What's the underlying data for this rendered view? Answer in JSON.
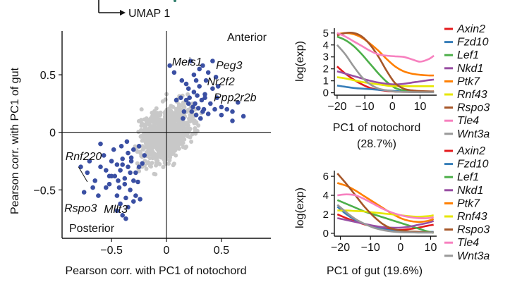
{
  "umap_label": "UMAP 1",
  "chart_data": [
    {
      "type": "scatter",
      "xlabel": "Pearson corr. with PC1 of notochord",
      "ylabel": "Pearson corr. with PC1 of gut",
      "xlim": [
        -0.95,
        0.95
      ],
      "ylim": [
        -0.92,
        0.88
      ],
      "xticks": [
        -0.5,
        0,
        0.5
      ],
      "xtick_labels": [
        "−0.5",
        "0",
        "0.5"
      ],
      "yticks": [
        0.5,
        0,
        -0.5
      ],
      "ytick_labels": [
        "0.5",
        "0",
        "−0.5"
      ],
      "region_labels": {
        "anterior": "Anterior",
        "posterior": "Posterior"
      },
      "colors": {
        "highlight": "#3a4fa3",
        "background": "#c8c8c8",
        "axis": "#111111"
      },
      "highlight_series": {
        "name": "highlighted genes",
        "x": [
          0.03,
          0.07,
          0.09,
          0.13,
          0.14,
          0.16,
          0.18,
          0.2,
          0.21,
          0.23,
          0.24,
          0.25,
          0.26,
          0.27,
          0.28,
          0.29,
          0.3,
          0.31,
          0.32,
          0.33,
          0.34,
          0.35,
          0.36,
          0.38,
          0.4,
          0.42,
          0.44,
          0.46,
          0.5,
          0.55,
          0.6,
          0.7,
          0.25,
          0.3,
          0.22,
          0.2,
          0.45,
          0.5,
          0.27,
          0.35,
          0.18,
          0.6,
          0.65,
          0.15,
          0.42,
          0.33,
          0.38,
          0.47,
          -0.2,
          -0.22,
          -0.25,
          -0.28,
          -0.3,
          -0.32,
          -0.33,
          -0.35,
          -0.37,
          -0.38,
          -0.4,
          -0.42,
          -0.43,
          -0.45,
          -0.47,
          -0.5,
          -0.52,
          -0.55,
          -0.57,
          -0.6,
          -0.62,
          -0.65,
          -0.7,
          -0.72,
          -0.75,
          -0.78,
          -0.3,
          -0.35,
          -0.4,
          -0.45,
          -0.5,
          -0.55,
          -0.25,
          -0.3,
          -0.35,
          -0.38,
          -0.42,
          -0.28,
          -0.33,
          -0.4,
          -0.45,
          -0.48,
          -0.52,
          -0.32,
          -0.37,
          -0.26,
          -0.36,
          -0.41,
          -0.44,
          -0.6,
          -0.67,
          -0.24
        ],
        "y": [
          0.58,
          0.52,
          0.28,
          0.3,
          0.45,
          0.18,
          0.28,
          0.25,
          0.3,
          0.18,
          0.22,
          0.35,
          0.25,
          0.15,
          0.32,
          0.21,
          0.4,
          0.12,
          0.28,
          0.18,
          0.2,
          0.3,
          0.45,
          0.16,
          0.25,
          0.38,
          0.2,
          0.3,
          0.15,
          0.2,
          0.18,
          0.14,
          0.5,
          0.55,
          0.62,
          0.38,
          0.48,
          0.22,
          0.45,
          0.33,
          0.42,
          0.1,
          0.26,
          0.12,
          0.62,
          0.58,
          0.52,
          0.4,
          -0.2,
          -0.27,
          -0.3,
          -0.35,
          -0.42,
          -0.22,
          -0.5,
          -0.3,
          -0.57,
          -0.4,
          -0.23,
          -0.33,
          -0.48,
          -0.28,
          -0.38,
          -0.25,
          -0.45,
          -0.33,
          -0.2,
          -0.3,
          -0.55,
          -0.42,
          -0.25,
          -0.35,
          -0.52,
          -0.3,
          -0.6,
          -0.65,
          -0.72,
          -0.68,
          -0.38,
          -0.48,
          -0.12,
          -0.15,
          -0.18,
          -0.45,
          -0.62,
          -0.55,
          -0.35,
          -0.28,
          -0.55,
          -0.15,
          -0.38,
          -0.25,
          -0.75,
          -0.43,
          -0.08,
          -0.12,
          -0.42,
          -0.1,
          -0.48,
          -0.58
        ]
      },
      "background_series": {
        "name": "other genes",
        "n_points": 900,
        "seed": 7,
        "spread": [
          0.22,
          0.22
        ]
      },
      "gene_labels": [
        {
          "text": "Meis1",
          "x": 0.05,
          "y": 0.58
        },
        {
          "text": "Peg3",
          "x": 0.45,
          "y": 0.55
        },
        {
          "text": "Nr2f2",
          "x": 0.37,
          "y": 0.41
        },
        {
          "text": "Ppp2r2b",
          "x": 0.43,
          "y": 0.27
        },
        {
          "text": "Rnf220",
          "x": -0.92,
          "y": -0.24
        },
        {
          "text": "Rspo3",
          "x": -0.93,
          "y": -0.69
        },
        {
          "text": "Mllt3",
          "x": -0.57,
          "y": -0.7
        }
      ]
    },
    {
      "type": "line",
      "title": "",
      "xlabel": "PC1 of notochord",
      "xlabel_line2": "(28.7%)",
      "ylabel": "log(exp)",
      "xlim": [
        -21,
        16
      ],
      "ylim": [
        -0.2,
        5.4
      ],
      "xticks": [
        -20,
        -10,
        0,
        10
      ],
      "xtick_labels": [
        "−20",
        "−10",
        "0",
        "10"
      ],
      "yticks": [
        0,
        1,
        2,
        3,
        4,
        5
      ],
      "ytick_labels": [
        "0",
        "1",
        "2",
        "3",
        "4",
        "5"
      ],
      "x": [
        -20,
        -17,
        -14,
        -11,
        -8,
        -5,
        -2,
        1,
        4,
        7,
        10,
        13,
        15
      ],
      "series": [
        {
          "name": "Axin2",
          "color": "#e41a1c",
          "values": [
            2.2,
            1.6,
            1.1,
            0.7,
            0.4,
            0.25,
            0.15,
            0.1,
            0.08,
            0.07,
            0.06,
            0.06,
            0.06
          ]
        },
        {
          "name": "Fzd10",
          "color": "#377eb8",
          "values": [
            0.6,
            0.5,
            0.4,
            0.35,
            0.3,
            0.25,
            0.2,
            0.15,
            0.1,
            0.08,
            0.08,
            0.07,
            0.07
          ]
        },
        {
          "name": "Lef1",
          "color": "#4daf4a",
          "values": [
            4.7,
            4.4,
            3.9,
            3.2,
            2.4,
            1.6,
            0.9,
            0.4,
            0.2,
            0.15,
            0.12,
            0.1,
            0.1
          ]
        },
        {
          "name": "Nkd1",
          "color": "#984ea3",
          "values": [
            1.8,
            1.6,
            1.4,
            1.2,
            1.0,
            0.85,
            0.75,
            0.7,
            0.75,
            0.85,
            0.95,
            1.05,
            1.1
          ]
        },
        {
          "name": "Ptk7",
          "color": "#ff7f00",
          "values": [
            4.9,
            5.0,
            4.9,
            4.6,
            4.1,
            3.5,
            2.8,
            2.2,
            1.8,
            1.6,
            1.5,
            1.45,
            1.45
          ]
        },
        {
          "name": "Rnf43",
          "color": "#e6e600",
          "values": [
            1.3,
            1.2,
            1.05,
            0.9,
            0.8,
            0.7,
            0.6,
            0.55,
            0.55,
            0.55,
            0.55,
            0.55,
            0.55
          ]
        },
        {
          "name": "Rspo3",
          "color": "#a65628",
          "values": [
            4.8,
            5.0,
            5.0,
            4.7,
            4.0,
            3.0,
            1.8,
            0.8,
            0.35,
            0.2,
            0.15,
            0.12,
            0.12
          ]
        },
        {
          "name": "Tle4",
          "color": "#f781bf",
          "values": [
            5.0,
            4.7,
            4.3,
            3.9,
            3.5,
            3.2,
            3.1,
            3.05,
            3.0,
            2.8,
            2.6,
            2.8,
            3.1
          ]
        },
        {
          "name": "Wnt3a",
          "color": "#999999",
          "values": [
            4.0,
            3.2,
            2.2,
            1.3,
            0.7,
            0.35,
            0.2,
            0.1,
            0.08,
            0.06,
            0.05,
            0.05,
            0.05
          ]
        }
      ]
    },
    {
      "type": "line",
      "title": "",
      "xlabel": "PC1 of gut (19.6%)",
      "ylabel": "log(exp)",
      "xlim": [
        -22,
        12
      ],
      "ylim": [
        -0.3,
        6.6
      ],
      "xticks": [
        -20,
        -10,
        0,
        10
      ],
      "xtick_labels": [
        "−20",
        "−10",
        "0",
        "10"
      ],
      "yticks": [
        0,
        2,
        4,
        6
      ],
      "ytick_labels": [
        "0",
        "2",
        "4",
        "6"
      ],
      "x": [
        -21,
        -18,
        -15,
        -12,
        -9,
        -6,
        -3,
        0,
        3,
        6,
        9,
        11
      ],
      "series": [
        {
          "name": "Axin2",
          "color": "#e41a1c",
          "values": [
            2.0,
            1.6,
            1.25,
            0.95,
            0.7,
            0.5,
            0.4,
            0.35,
            0.45,
            0.6,
            0.8,
            0.9
          ]
        },
        {
          "name": "Fzd10",
          "color": "#377eb8",
          "values": [
            2.8,
            2.0,
            1.4,
            1.0,
            0.7,
            0.45,
            0.3,
            0.2,
            0.15,
            0.15,
            0.15,
            0.15
          ]
        },
        {
          "name": "Lef1",
          "color": "#4daf4a",
          "values": [
            3.5,
            3.1,
            2.7,
            2.3,
            2.0,
            1.7,
            1.4,
            1.1,
            0.8,
            0.5,
            0.2,
            0.05
          ]
        },
        {
          "name": "Nkd1",
          "color": "#984ea3",
          "values": [
            1.6,
            1.4,
            1.2,
            1.0,
            0.8,
            0.65,
            0.6,
            0.6,
            0.7,
            0.9,
            1.1,
            1.3
          ]
        },
        {
          "name": "Ptk7",
          "color": "#ff7f00",
          "values": [
            5.3,
            5.0,
            4.5,
            3.9,
            3.3,
            2.7,
            2.1,
            1.6,
            1.3,
            1.2,
            1.3,
            1.5
          ]
        },
        {
          "name": "Rnf43",
          "color": "#e6e600",
          "values": [
            2.4,
            2.4,
            2.35,
            2.3,
            2.2,
            2.1,
            2.0,
            1.9,
            1.8,
            1.75,
            1.8,
            1.9
          ]
        },
        {
          "name": "Rspo3",
          "color": "#a65628",
          "values": [
            6.3,
            5.2,
            4.0,
            2.8,
            1.8,
            1.0,
            0.5,
            0.3,
            0.2,
            0.15,
            0.1,
            0.1
          ]
        },
        {
          "name": "Tle4",
          "color": "#f781bf",
          "values": [
            4.0,
            4.1,
            4.0,
            3.6,
            3.1,
            2.6,
            2.2,
            1.9,
            1.7,
            1.6,
            1.6,
            1.7
          ]
        },
        {
          "name": "Wnt3a",
          "color": "#999999",
          "values": [
            3.0,
            2.2,
            1.5,
            1.0,
            0.6,
            0.35,
            0.2,
            0.12,
            0.1,
            0.08,
            0.08,
            0.08
          ]
        }
      ]
    }
  ]
}
